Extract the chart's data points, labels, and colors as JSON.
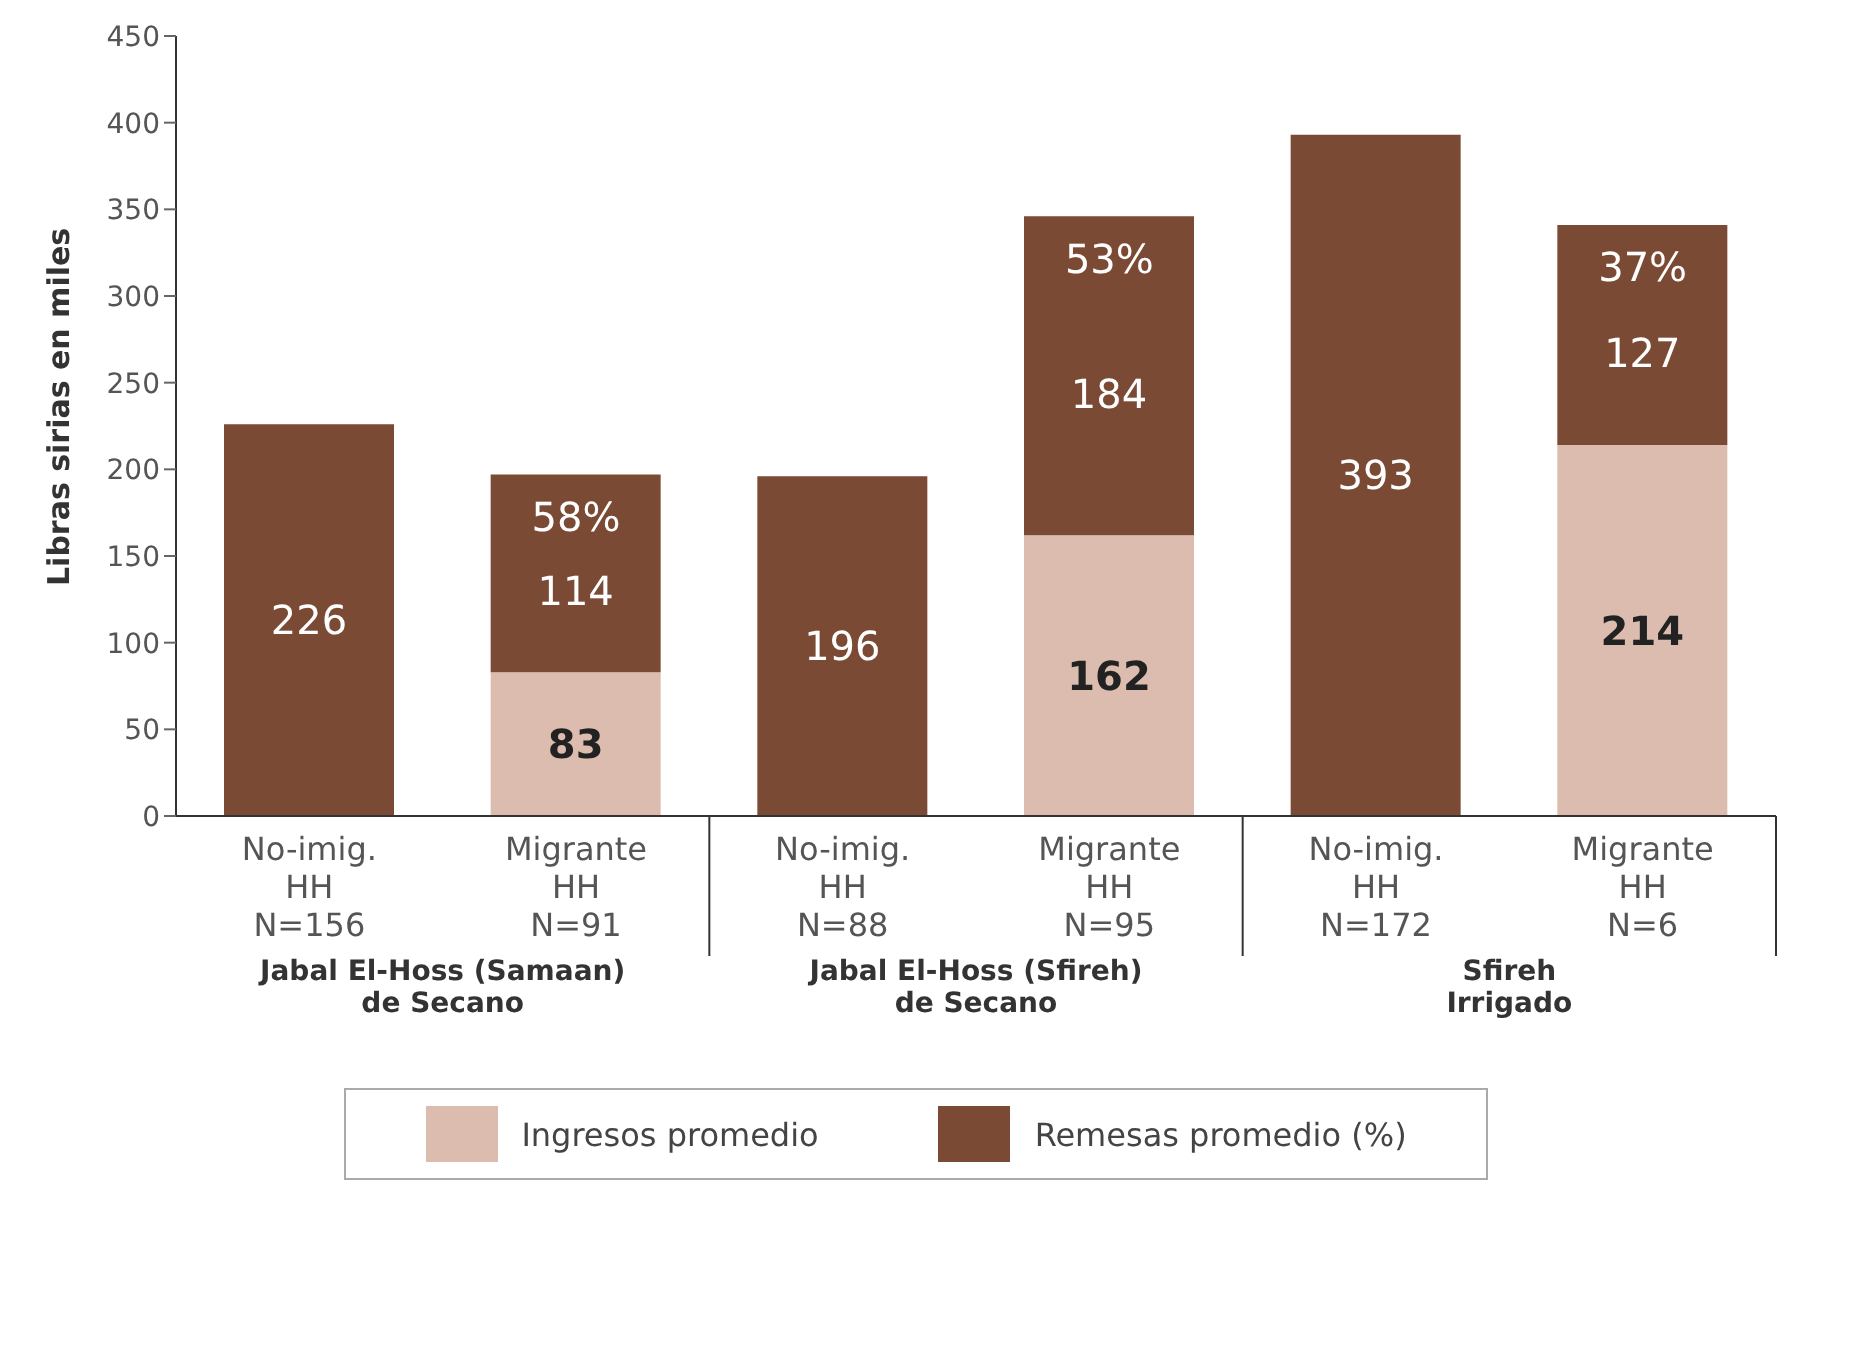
{
  "chart_data": {
    "type": "bar",
    "stacked": true,
    "ylabel": "Libras sirias en miles",
    "categories": [
      "No-imig.\nHH\nN=156",
      "Migrante\nHH\nN=91",
      "No-imig.\nHH\nN=88",
      "Migrante\nHH\nN=95",
      "No-imig.\nHH\nN=172",
      "Migrante\nHH\nN=6"
    ],
    "series": [
      {
        "name": "Ingresos promedio",
        "color": "#dcbcae",
        "colors": [
          "#7b4a34",
          "#dcbcae",
          "#7b4a34",
          "#dcbcae",
          "#7b4a34",
          "#dcbcae"
        ],
        "values": [
          226,
          83,
          196,
          162,
          393,
          214
        ]
      },
      {
        "name": "Remesas promedio (%)",
        "color": "#7b4a34",
        "values": [
          null,
          114,
          null,
          184,
          null,
          127
        ]
      }
    ],
    "ylim": [
      0,
      450
    ],
    "yticks": [
      0,
      50,
      100,
      150,
      200,
      250,
      300,
      350,
      400,
      450
    ],
    "data_labels": true,
    "legend": "bottom",
    "annotations": [
      {
        "text": "58%",
        "x": "Migrante\nHH\nN=91",
        "y": 197
      },
      {
        "text": "53%",
        "x": "Migrante\nHH\nN=95",
        "y": 346
      },
      {
        "text": "37%",
        "x": "Migrante\nHH\nN=6",
        "y": 341
      },
      "Jabal El-Hoss (Samaan)\nde Secano",
      "Jabal El-Hoss (Sfireh)\nde Secano",
      "Sfireh\nIrrigado"
    ]
  }
}
